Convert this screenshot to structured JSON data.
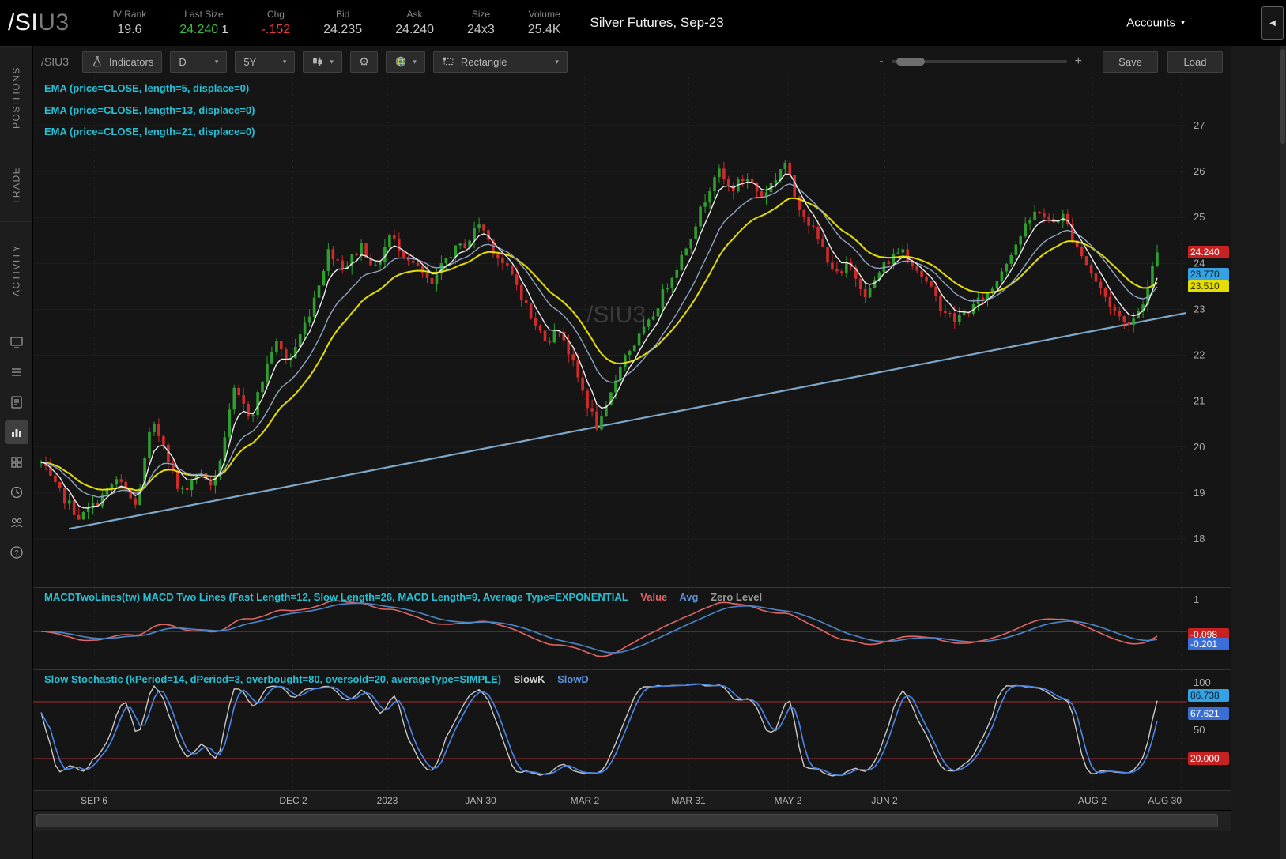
{
  "header": {
    "symbol": "/SI",
    "symbol_suffix": "U3",
    "stats": [
      {
        "label": "IV Rank",
        "value": "19.6",
        "color": "dim"
      },
      {
        "label": "Last Size",
        "value": "24.240",
        "extra": "1",
        "color": "green"
      },
      {
        "label": "Chg",
        "value": "-.152",
        "color": "red"
      },
      {
        "label": "Bid",
        "value": "24.235",
        "color": "dim"
      },
      {
        "label": "Ask",
        "value": "24.240",
        "color": "dim"
      },
      {
        "label": "Size",
        "value": "24x3",
        "color": "dim"
      },
      {
        "label": "Volume",
        "value": "25.4K",
        "color": "dim"
      }
    ],
    "title": "Silver Futures, Sep-23",
    "accounts_label": "Accounts",
    "collapse_icon": "chevron-left-icon"
  },
  "sidebar": {
    "tabs": [
      "POSITIONS",
      "TRADE",
      "ACTIVITY"
    ],
    "icons": [
      "screen-icon",
      "watchlist-icon",
      "orders-icon",
      "chart-icon",
      "grid-icon",
      "history-icon",
      "share-icon",
      "help-icon"
    ],
    "active_icon": "chart-icon"
  },
  "toolbar": {
    "symbol_input": "/SIU3",
    "indicators_label": "Indicators",
    "timeframe": "D",
    "range": "5Y",
    "drawing_tool": "Rectangle",
    "zoom_minus": "-",
    "zoom_plus": "+",
    "save_label": "Save",
    "load_label": "Load"
  },
  "studies": {
    "ema_labels": [
      "EMA (price=CLOSE, length=5, displace=0)",
      "EMA (price=CLOSE, length=13, displace=0)",
      "EMA (price=CLOSE, length=21, displace=0)"
    ],
    "macd_title": "MACDTwoLines(tw) MACD Two Lines (Fast Length=12, Slow Length=26, MACD Length=9, Average Type=EXPONENTIAL",
    "macd_value_label": "Value",
    "macd_avg_label": "Avg",
    "macd_zero_label": "Zero Level",
    "stoch_title": "Slow Stochastic (kPeriod=14, dPeriod=3, overbought=80, oversold=20, averageType=SIMPLE)",
    "stoch_k_label": "SlowK",
    "stoch_d_label": "SlowD"
  },
  "chart_data": {
    "type": "candlestick",
    "watermark": "/SIU3",
    "bars": 238,
    "last_close": 24.24,
    "colors": {
      "up": "#2f9e2f",
      "down": "#cf2b2b",
      "ema5": "#ececec",
      "ema13": "#8fa3bf",
      "ema21": "#e3de00",
      "trendline": "#7fa8c9",
      "macd_value": "#e06565",
      "macd_avg": "#4a86c8",
      "stoch_k": "#c8c8c8",
      "stoch_d": "#4a86e8",
      "stoch_band": "#a03030"
    },
    "y_axis": {
      "price_top": 28.05,
      "price_bottom": 16.95,
      "ticks": [
        27,
        26,
        25,
        24,
        23,
        22,
        21,
        20,
        19,
        18
      ]
    },
    "price_bubbles": [
      {
        "text": "24.240",
        "value": 24.24,
        "bg": "#c82121",
        "fg": "#ffffff"
      },
      {
        "text": "23.770",
        "value": 23.77,
        "bg": "#35a3e3",
        "fg": "#06222e"
      },
      {
        "text": "23.510",
        "value": 23.51,
        "bg": "#e3de00",
        "fg": "#2e2a00"
      }
    ],
    "price_keyframes": [
      [
        0.0,
        19.65
      ],
      [
        0.012,
        19.15
      ],
      [
        0.035,
        18.45
      ],
      [
        0.05,
        18.8
      ],
      [
        0.068,
        19.3
      ],
      [
        0.085,
        18.7
      ],
      [
        0.099,
        20.5
      ],
      [
        0.11,
        20.1
      ],
      [
        0.124,
        18.95
      ],
      [
        0.14,
        19.45
      ],
      [
        0.155,
        19.15
      ],
      [
        0.173,
        21.2
      ],
      [
        0.188,
        20.65
      ],
      [
        0.209,
        22.3
      ],
      [
        0.222,
        21.85
      ],
      [
        0.24,
        22.9
      ],
      [
        0.258,
        24.3
      ],
      [
        0.272,
        23.9
      ],
      [
        0.287,
        24.4
      ],
      [
        0.3,
        23.85
      ],
      [
        0.312,
        24.6
      ],
      [
        0.33,
        24.1
      ],
      [
        0.35,
        23.5
      ],
      [
        0.365,
        24.2
      ],
      [
        0.382,
        24.45
      ],
      [
        0.393,
        24.9
      ],
      [
        0.405,
        24.3
      ],
      [
        0.425,
        23.6
      ],
      [
        0.443,
        22.6
      ],
      [
        0.455,
        22.35
      ],
      [
        0.465,
        22.6
      ],
      [
        0.478,
        21.7
      ],
      [
        0.49,
        20.9
      ],
      [
        0.499,
        20.4
      ],
      [
        0.507,
        20.85
      ],
      [
        0.52,
        21.9
      ],
      [
        0.53,
        22.2
      ],
      [
        0.545,
        22.7
      ],
      [
        0.56,
        23.5
      ],
      [
        0.575,
        24.2
      ],
      [
        0.59,
        25.1
      ],
      [
        0.605,
        26.05
      ],
      [
        0.618,
        25.6
      ],
      [
        0.632,
        25.9
      ],
      [
        0.645,
        25.45
      ],
      [
        0.658,
        25.85
      ],
      [
        0.666,
        26.25
      ],
      [
        0.676,
        25.4
      ],
      [
        0.69,
        24.8
      ],
      [
        0.705,
        24.1
      ],
      [
        0.715,
        23.65
      ],
      [
        0.723,
        24.0
      ],
      [
        0.74,
        23.3
      ],
      [
        0.753,
        23.9
      ],
      [
        0.771,
        24.35
      ],
      [
        0.79,
        23.7
      ],
      [
        0.805,
        23.1
      ],
      [
        0.818,
        22.75
      ],
      [
        0.835,
        23.05
      ],
      [
        0.852,
        23.45
      ],
      [
        0.87,
        24.3
      ],
      [
        0.885,
        24.9
      ],
      [
        0.893,
        25.2
      ],
      [
        0.905,
        24.85
      ],
      [
        0.915,
        25.05
      ],
      [
        0.93,
        24.3
      ],
      [
        0.945,
        23.6
      ],
      [
        0.958,
        23.1
      ],
      [
        0.97,
        22.7
      ],
      [
        0.981,
        22.85
      ],
      [
        0.991,
        23.4
      ],
      [
        1.0,
        24.24
      ]
    ],
    "ema_periods": [
      5,
      13,
      21
    ],
    "trendline": {
      "x1": 0.031,
      "p1": 18.22,
      "x2": 0.999,
      "p2": 22.92
    },
    "x_axis": {
      "labels": [
        {
          "text": "SEP 6",
          "pos": 0.053
        },
        {
          "text": "DEC 2",
          "pos": 0.225
        },
        {
          "text": "2023",
          "pos": 0.307
        },
        {
          "text": "JAN 30",
          "pos": 0.388
        },
        {
          "text": "MAR 2",
          "pos": 0.478
        },
        {
          "text": "MAR 31",
          "pos": 0.568
        },
        {
          "text": "MAY 2",
          "pos": 0.654
        },
        {
          "text": "JUN 2",
          "pos": 0.738
        },
        {
          "text": "AUG 2",
          "pos": 0.918
        },
        {
          "text": "AUG 30",
          "pos": 0.995,
          "align": "end"
        }
      ]
    },
    "macd": {
      "fast": 12,
      "slow": 26,
      "signal": 9,
      "axis_ticks": [
        {
          "text": "1",
          "value": 1
        }
      ],
      "bubbles": [
        {
          "text": "-0.098",
          "value": -0.098,
          "bg": "#c82121",
          "fg": "#ffffff"
        },
        {
          "text": "-0.201",
          "value": -0.201,
          "bg": "#3a6fd8",
          "fg": "#ffffff"
        }
      ]
    },
    "stochastic": {
      "k_period": 14,
      "d_period": 3,
      "overbought": 80,
      "oversold": 20,
      "axis_ticks": [
        {
          "text": "100",
          "value": 100
        },
        {
          "text": "50",
          "value": 50
        }
      ],
      "bubbles": [
        {
          "text": "86.738",
          "value": 86.738,
          "bg": "#35a3e3",
          "fg": "#06222e"
        },
        {
          "text": "67.621",
          "value": 67.621,
          "bg": "#3a6fd8",
          "fg": "#ffffff"
        },
        {
          "text": "20.000",
          "value": 20,
          "bg": "#c82121",
          "fg": "#ffffff"
        }
      ]
    }
  }
}
